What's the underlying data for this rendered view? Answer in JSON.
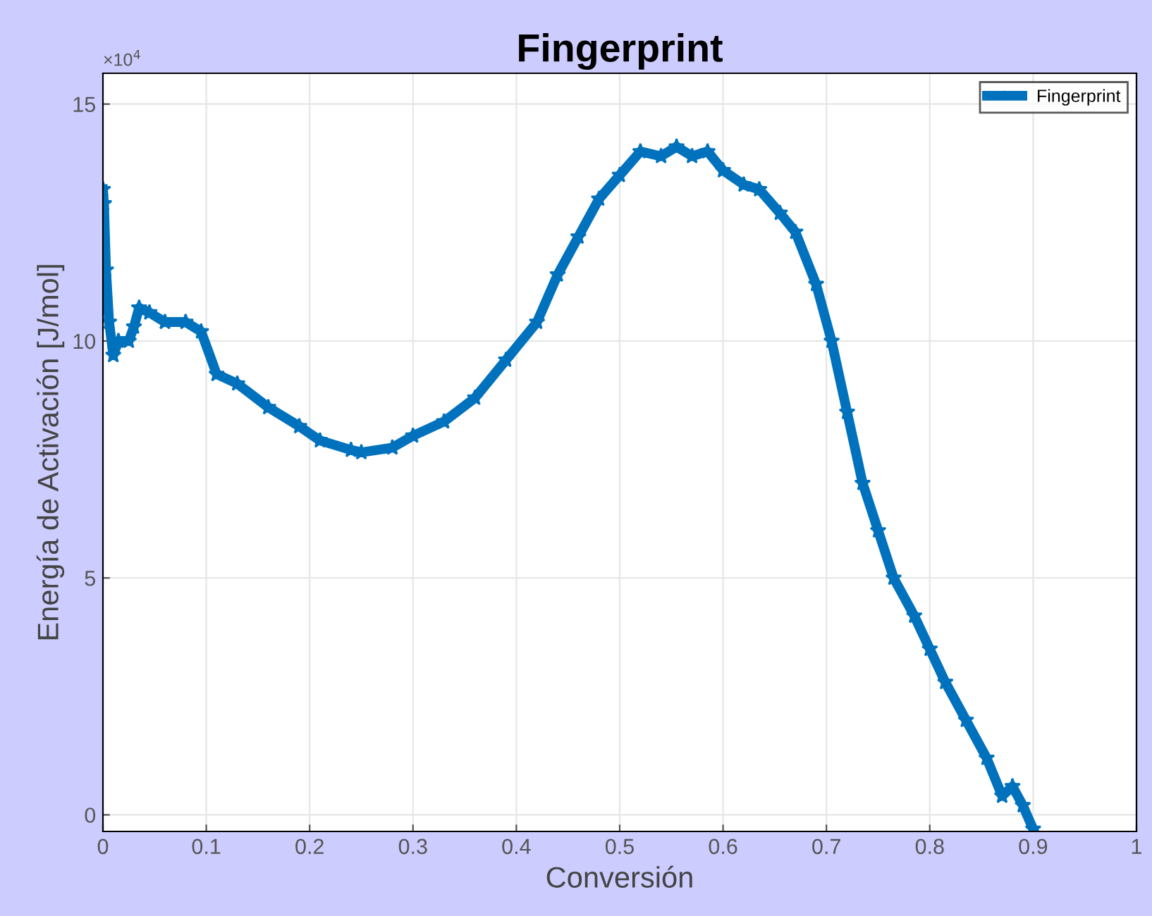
{
  "chart_data": {
    "type": "line",
    "title": "Fingerprint",
    "xlabel": "Conversión",
    "ylabel": "Energía de Activación [J/mol]",
    "annotations": [
      "×10$^{4}$"
    ],
    "xlim": [
      0,
      1
    ],
    "xticks": [
      0,
      0.1,
      0.2,
      0.3,
      0.4,
      0.5,
      0.6,
      0.7,
      0.8,
      0.9,
      1
    ],
    "ylim": [
      -0.35,
      15.65
    ],
    "yticks": [
      0,
      5,
      10,
      15
    ],
    "grid": true,
    "legend": "top right",
    "marker": "star",
    "line_style": "solid",
    "series": [
      {
        "name": "Fingerprint",
        "color": "#0072bd",
        "x": [
          0,
          0.001,
          0.003,
          0.006,
          0.01,
          0.015,
          0.025,
          0.03,
          0.035,
          0.045,
          0.06,
          0.08,
          0.095,
          0.11,
          0.13,
          0.16,
          0.19,
          0.21,
          0.24,
          0.25,
          0.28,
          0.3,
          0.33,
          0.36,
          0.39,
          0.42,
          0.44,
          0.46,
          0.48,
          0.5,
          0.52,
          0.54,
          0.555,
          0.57,
          0.585,
          0.6,
          0.62,
          0.635,
          0.655,
          0.67,
          0.69,
          0.705,
          0.72,
          0.735,
          0.75,
          0.765,
          0.785,
          0.8,
          0.815,
          0.835,
          0.855,
          0.87,
          0.88,
          0.89,
          0.9
        ],
        "values": [
          13.2,
          12.9,
          11.5,
          10.4,
          9.7,
          10.0,
          10.0,
          10.3,
          10.7,
          10.6,
          10.4,
          10.4,
          10.2,
          9.3,
          9.1,
          8.6,
          8.2,
          7.9,
          7.7,
          7.65,
          7.75,
          8.0,
          8.3,
          8.8,
          9.6,
          10.4,
          11.4,
          12.2,
          13.0,
          13.5,
          14.0,
          13.9,
          14.1,
          13.9,
          14.0,
          13.6,
          13.3,
          13.2,
          12.7,
          12.3,
          11.2,
          10.0,
          8.5,
          7.0,
          6.0,
          5.0,
          4.2,
          3.5,
          2.8,
          2.0,
          1.2,
          0.4,
          0.6,
          0.2,
          -0.3
        ]
      }
    ]
  }
}
